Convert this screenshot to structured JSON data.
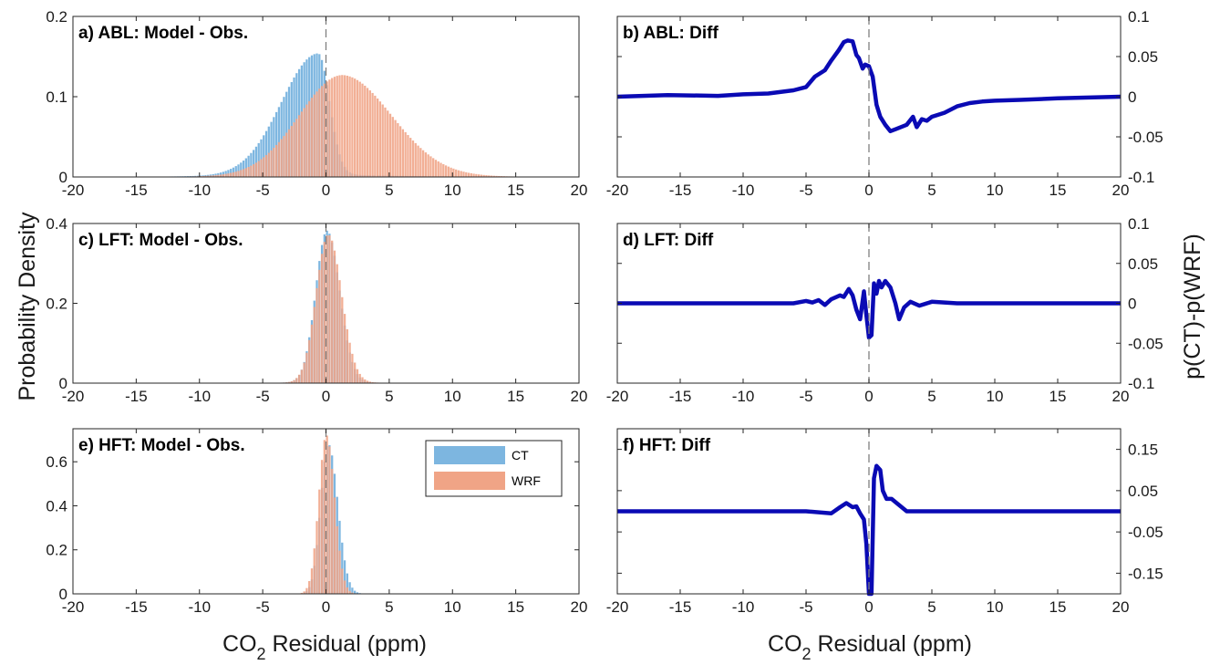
{
  "figure": {
    "ylabel_left": "Probability Density",
    "ylabel_right": "p(CT)-p(WRF)",
    "xlabel_left": "CO",
    "xlabel_left_sub": "2",
    "xlabel_left_rest": " Residual (ppm)",
    "xlabel_right": "CO",
    "xlabel_right_sub": "2",
    "xlabel_right_rest": " Residual (ppm)"
  },
  "legend": {
    "ct": "CT",
    "wrf": "WRF"
  },
  "colors": {
    "ct": "#7db6e0",
    "wrf": "#f0a486",
    "diff": "#0a0ab4",
    "axis": "#262626",
    "zero_line": "#7f7f7f"
  },
  "chart_data": [
    {
      "type": "bar",
      "title": "a) ABL: Model - Obs.",
      "xlim": [
        -20,
        20
      ],
      "ylim": [
        0,
        0.2
      ],
      "xticks": [
        "-20",
        "-15",
        "-10",
        "-5",
        "0",
        "5",
        "10",
        "15",
        "20"
      ],
      "yticks": [
        "0",
        "0.1",
        "0.2"
      ],
      "ytick_values": [
        0,
        0.1,
        0.2
      ],
      "series": [
        {
          "name": "CT",
          "shape": {
            "peak": 0.15,
            "center": -0.6,
            "sigma_left": 2.9,
            "sigma_right": 0.9,
            "tail": 0.004
          }
        },
        {
          "name": "WRF",
          "shape": {
            "peak": 0.124,
            "center": 1.3,
            "sigma_left": 3.4,
            "sigma_right": 3.9,
            "tail": 0.003
          }
        }
      ]
    },
    {
      "type": "line",
      "title": "b) ABL: Diff",
      "xlim": [
        -20,
        20
      ],
      "ylim": [
        -0.1,
        0.1
      ],
      "xticks": [
        "-20",
        "-15",
        "-10",
        "-5",
        "0",
        "5",
        "10",
        "15",
        "20"
      ],
      "yticks": [
        "-0.1",
        "-0.05",
        "0",
        "0.05",
        "0.1"
      ],
      "ytick_values": [
        -0.1,
        -0.05,
        0,
        0.05,
        0.1
      ],
      "series": [
        {
          "x": [
            -20,
            -16,
            -12,
            -10,
            -8,
            -6,
            -5,
            -4.3,
            -3.5,
            -3,
            -2.4,
            -2,
            -1.7,
            -1.3,
            -1.0,
            -0.8,
            -0.5,
            -0.3,
            0,
            0.3,
            0.6,
            0.9,
            1.3,
            1.7,
            2.2,
            3,
            3.5,
            3.8,
            4.2,
            4.6,
            5,
            6,
            7,
            8,
            9,
            10,
            12,
            15,
            20
          ],
          "y": [
            0,
            0.002,
            0.001,
            0.003,
            0.004,
            0.008,
            0.012,
            0.025,
            0.033,
            0.045,
            0.058,
            0.068,
            0.07,
            0.069,
            0.052,
            0.048,
            0.035,
            0.04,
            0.038,
            0.025,
            -0.01,
            -0.025,
            -0.035,
            -0.043,
            -0.04,
            -0.035,
            -0.025,
            -0.038,
            -0.028,
            -0.03,
            -0.025,
            -0.02,
            -0.012,
            -0.008,
            -0.006,
            -0.005,
            -0.004,
            -0.002,
            0
          ]
        }
      ]
    },
    {
      "type": "bar",
      "title": "c) LFT: Model - Obs.",
      "xlim": [
        -20,
        20
      ],
      "ylim": [
        0,
        0.4
      ],
      "xticks": [
        "-20",
        "-15",
        "-10",
        "-5",
        "0",
        "5",
        "10",
        "15",
        "20"
      ],
      "yticks": [
        "0",
        "0.2",
        "0.4"
      ],
      "ytick_values": [
        0,
        0.2,
        0.4
      ],
      "series": [
        {
          "name": "CT",
          "shape": {
            "peak": 0.38,
            "center": 0.1,
            "sigma_left": 0.9,
            "sigma_right": 1.0,
            "tail": 0.002
          }
        },
        {
          "name": "WRF",
          "shape": {
            "peak": 0.37,
            "center": 0.2,
            "sigma_left": 0.95,
            "sigma_right": 1.05,
            "tail": 0.002
          }
        }
      ]
    },
    {
      "type": "line",
      "title": "d) LFT: Diff",
      "xlim": [
        -20,
        20
      ],
      "ylim": [
        -0.1,
        0.1
      ],
      "xticks": [
        "-20",
        "-15",
        "-10",
        "-5",
        "0",
        "5",
        "10",
        "15",
        "20"
      ],
      "yticks": [
        "-0.1",
        "-0.05",
        "0",
        "0.05",
        "0.1"
      ],
      "ytick_values": [
        -0.1,
        -0.05,
        0,
        0.05,
        0.1
      ],
      "series": [
        {
          "x": [
            -20,
            -6,
            -5,
            -4.5,
            -4,
            -3.5,
            -3,
            -2.3,
            -2,
            -1.6,
            -1.3,
            -1,
            -0.7,
            -0.4,
            -0.2,
            0,
            0.2,
            0.4,
            0.6,
            0.8,
            1.0,
            1.3,
            1.7,
            2.1,
            2.4,
            2.8,
            3.3,
            4,
            5,
            7,
            20
          ],
          "y": [
            0,
            0,
            0.003,
            0.001,
            0.004,
            -0.002,
            0.005,
            0.01,
            0.008,
            0.018,
            0.01,
            -0.008,
            -0.02,
            0.015,
            -0.015,
            -0.043,
            -0.04,
            0.025,
            0.012,
            0.028,
            0.02,
            0.028,
            0.02,
            0,
            -0.02,
            -0.005,
            0.002,
            -0.003,
            0.002,
            0,
            0
          ]
        }
      ]
    },
    {
      "type": "bar",
      "title": "e) HFT: Model - Obs.",
      "xlim": [
        -20,
        20
      ],
      "ylim": [
        0,
        0.75
      ],
      "xticks": [
        "-20",
        "-15",
        "-10",
        "-5",
        "0",
        "5",
        "10",
        "15",
        "20"
      ],
      "yticks": [
        "0",
        "0.2",
        "0.4",
        "0.6"
      ],
      "ytick_values": [
        0,
        0.2,
        0.4,
        0.6
      ],
      "series": [
        {
          "name": "CT",
          "shape": {
            "peak": 0.68,
            "center": 0.2,
            "sigma_left": 0.6,
            "sigma_right": 0.75,
            "tail": 0.001
          }
        },
        {
          "name": "WRF",
          "shape": {
            "peak": 0.72,
            "center": 0.05,
            "sigma_left": 0.6,
            "sigma_right": 0.65,
            "tail": 0.001
          }
        }
      ]
    },
    {
      "type": "line",
      "title": "f) HFT: Diff",
      "xlim": [
        -20,
        20
      ],
      "ylim": [
        -0.2,
        0.2
      ],
      "xticks": [
        "-20",
        "-15",
        "-10",
        "-5",
        "0",
        "5",
        "10",
        "15",
        "20"
      ],
      "yticks": [
        "-0.15",
        "-0.05",
        "0.05",
        "0.15"
      ],
      "ytick_values": [
        -0.15,
        -0.05,
        0.05,
        0.15
      ],
      "series": [
        {
          "x": [
            -20,
            -5,
            -3,
            -2.3,
            -1.8,
            -1.3,
            -1,
            -0.7,
            -0.4,
            -0.2,
            0,
            0.2,
            0.4,
            0.6,
            0.9,
            1.1,
            1.4,
            1.8,
            2.2,
            2.6,
            3,
            4,
            5,
            20
          ],
          "y": [
            0,
            0,
            -0.005,
            0.01,
            0.02,
            0.01,
            0.012,
            -0.005,
            -0.02,
            -0.08,
            -0.2,
            -0.2,
            0.08,
            0.11,
            0.1,
            0.05,
            0.03,
            0.03,
            0.02,
            0.01,
            0,
            0,
            0,
            0
          ]
        }
      ]
    }
  ]
}
